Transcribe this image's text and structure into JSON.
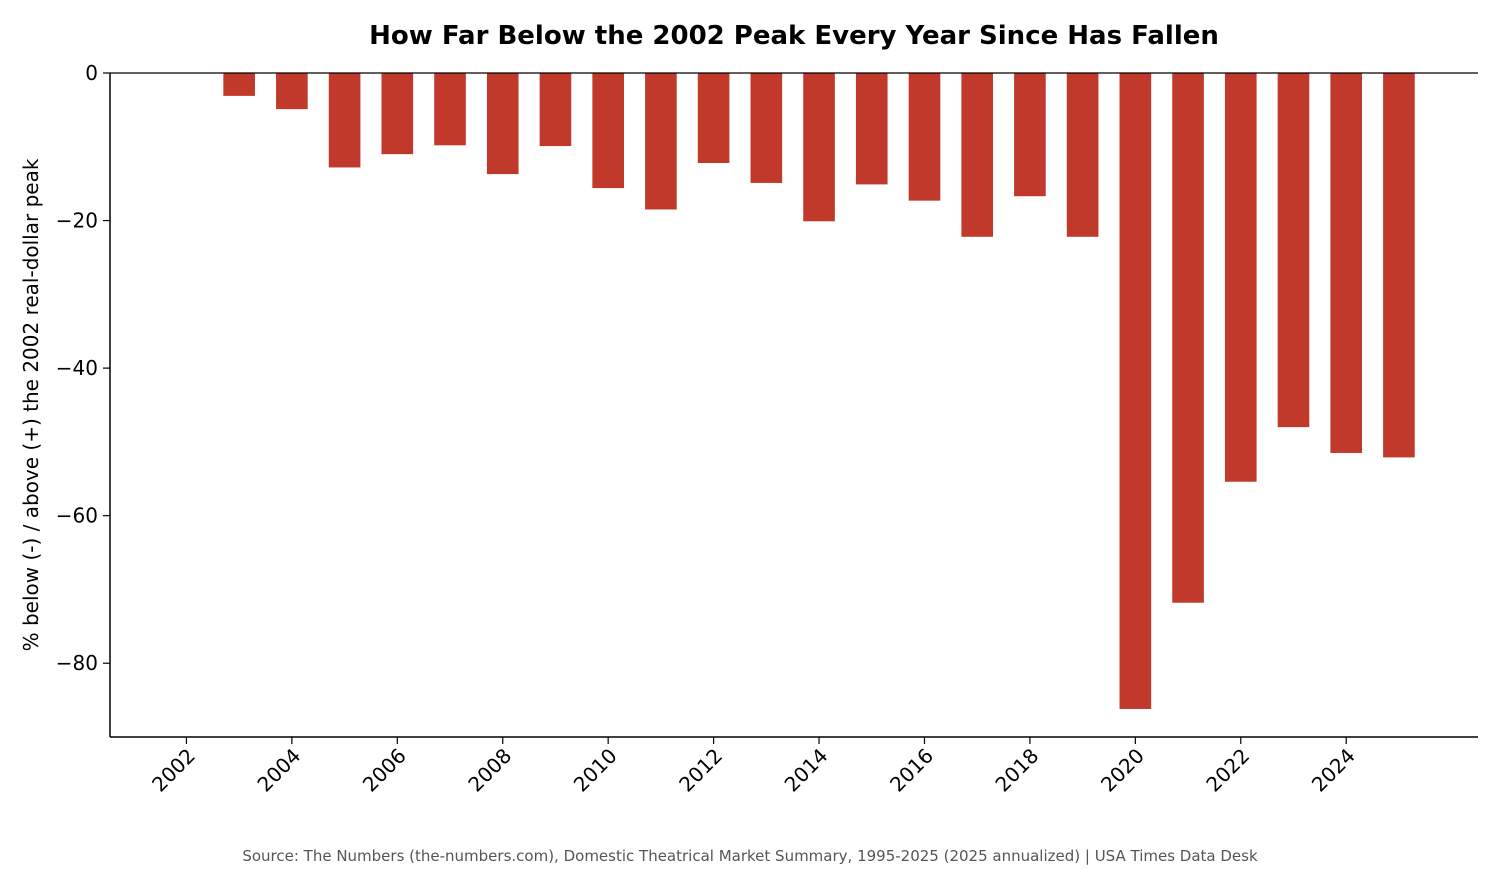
{
  "chart_data": {
    "type": "bar",
    "title": "How Far Below the 2002 Peak Every Year Since Has Fallen",
    "xlabel": "",
    "ylabel": "% below (-) / above (+) the 2002 real-dollar peak",
    "x": [
      2002,
      2003,
      2004,
      2005,
      2006,
      2007,
      2008,
      2009,
      2010,
      2011,
      2012,
      2013,
      2014,
      2015,
      2016,
      2017,
      2018,
      2019,
      2020,
      2021,
      2022,
      2023,
      2024,
      2025
    ],
    "series": [
      {
        "values": [
          0,
          -3.1,
          -4.9,
          -12.8,
          -11.0,
          -9.8,
          -13.7,
          -9.9,
          -15.6,
          -18.5,
          -12.2,
          -14.9,
          -20.1,
          -15.1,
          -17.3,
          -22.2,
          -16.7,
          -22.2,
          -86.2,
          -71.8,
          -55.4,
          -48.0,
          -51.5,
          -52.1
        ]
      }
    ],
    "xticks": [
      "2002",
      "2004",
      "2006",
      "2008",
      "2010",
      "2012",
      "2014",
      "2016",
      "2018",
      "2020",
      "2022",
      "2024"
    ],
    "yticks": [
      "0",
      "−20",
      "−40",
      "−60",
      "−80"
    ],
    "ylim": [
      -90,
      0
    ],
    "xlim": [
      2000.55,
      2026.5
    ],
    "grid": false,
    "legend": "none",
    "bar_color": "#c0392b",
    "source": "Source: The Numbers (the-numbers.com), Domestic Theatrical Market Summary, 1995-2025 (2025 annualized) | USA Times Data Desk"
  }
}
